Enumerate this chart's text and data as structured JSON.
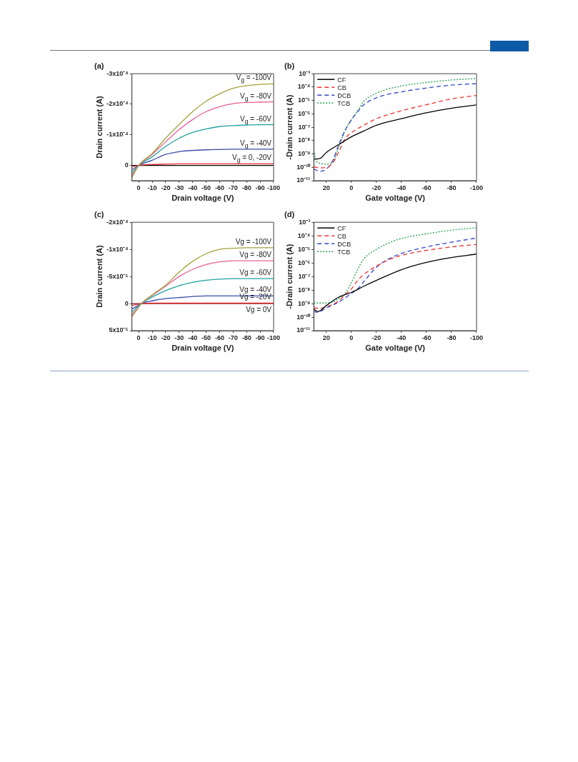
{
  "chart_data": [
    {
      "type": "line",
      "title": "(a)",
      "xlabel": "Drain voltage (V)",
      "ylabel": "Drain current (A)",
      "marker": "none",
      "xlim": [
        5,
        -100
      ],
      "xticks": [
        0,
        -10,
        -20,
        -30,
        -40,
        -50,
        -60,
        -70,
        -80,
        -90,
        -100
      ],
      "ylim": [
        5e-05,
        -0.0003
      ],
      "yticks": [
        {
          "value": -0.0003,
          "label": "-3x10⁻⁴"
        },
        {
          "value": -0.0002,
          "label": "-2x10⁻⁴"
        },
        {
          "value": -0.0001,
          "label": "-1x10⁻⁴"
        },
        0
      ],
      "x": [
        5,
        0,
        -10,
        -20,
        -30,
        -40,
        -50,
        -60,
        -70,
        -80,
        -90,
        -100
      ],
      "series": [
        {
          "name": "V$_{g}$ = -100V",
          "color": "#a3a13e",
          "values": [
            4e-05,
            0,
            -3.9e-05,
            -8.9e-05,
            -0.000134,
            -0.000176,
            -0.00021,
            -0.000234,
            -0.000252,
            -0.000261,
            -0.000265,
            -0.000267
          ]
        },
        {
          "name": "V$_{g}$ = -80V",
          "color": "#e8609a",
          "values": [
            3.3e-05,
            0,
            -3.6e-05,
            -7.7e-05,
            -0.000117,
            -0.00015,
            -0.000176,
            -0.000192,
            -0.000202,
            -0.000206,
            -0.000207,
            -0.000208
          ]
        },
        {
          "name": "V$_{g}$ = -60V",
          "color": "#20a0a0",
          "values": [
            2.5e-05,
            0,
            -2.8e-05,
            -6.2e-05,
            -8.9e-05,
            -0.000108,
            -0.000119,
            -0.000127,
            -0.00013,
            -0.000132,
            -0.000133,
            -0.000133
          ]
        },
        {
          "name": "V$_{g}$ = -40V",
          "color": "#3a4aa8",
          "values": [
            1.5e-05,
            0,
            -1.7e-05,
            -3.6e-05,
            -4.5e-05,
            -4.9e-05,
            -5.1e-05,
            -5.2e-05,
            -5.3e-05,
            -5.3e-05,
            -5.3e-05,
            -5.3e-05
          ]
        },
        {
          "name": "V$_{g}$ = 0, -20V",
          "color": "#e83030",
          "values": [
            5e-06,
            0,
            -3e-06,
            -4e-06,
            -5e-06,
            -5e-06,
            -5e-06,
            -5e-06,
            -5e-06,
            -5e-06,
            -5e-06,
            -5e-06
          ]
        },
        {
          "color": "#000000",
          "values": [
            0,
            0,
            0,
            0,
            0,
            0,
            0,
            0,
            0,
            0,
            0,
            0
          ]
        }
      ]
    },
    {
      "type": "line",
      "title": "(b)",
      "xlabel": "Gate voltage (V)",
      "ylabel": "-Drain current (A)",
      "log": true,
      "legend": "top left",
      "xlim": [
        30,
        -100
      ],
      "xticks": [
        20,
        0,
        -20,
        -40,
        -60,
        -80,
        -100
      ],
      "ylim": [
        1e-11,
        0.001
      ],
      "yticks": [
        {
          "value": 1e-11,
          "label": "10⁻¹¹"
        },
        {
          "value": 1e-10,
          "label": "10⁻¹⁰"
        },
        {
          "value": 1e-09,
          "label": "10⁻⁹"
        },
        {
          "value": 1e-08,
          "label": "10⁻⁸"
        },
        {
          "value": 1e-07,
          "label": "10⁻⁷"
        },
        {
          "value": 1e-06,
          "label": "10⁻⁶"
        },
        {
          "value": 1e-05,
          "label": "10⁻⁵"
        },
        {
          "value": 0.0001,
          "label": "10⁻⁴"
        },
        {
          "value": 0.001,
          "label": "10⁻³"
        }
      ],
      "series": [
        {
          "name": "CF",
          "color": "#000000",
          "line_style": "solid",
          "x": [
            30,
            25,
            20,
            10,
            0,
            -10,
            -20,
            -40,
            -60,
            -80,
            -100
          ],
          "values": [
            4.1e-10,
            4.6e-10,
            1.3e-09,
            5.1e-09,
            1.9e-08,
            5.2e-08,
            1.4e-07,
            4.3e-07,
            1.2e-06,
            2.6e-06,
            4.6e-06
          ]
        },
        {
          "name": "CB",
          "color": "#ee3333",
          "line_style": "dashed",
          "x": [
            30,
            25,
            20,
            15,
            10,
            5,
            0,
            -10,
            -20,
            -40,
            -60,
            -80,
            -100
          ],
          "values": [
            1.1e-10,
            9.1e-11,
            1e-10,
            2e-10,
            1.5e-09,
            1.4e-08,
            3.8e-08,
            1.4e-07,
            4.3e-07,
            1.7e-06,
            4.8e-06,
            1.3e-05,
            2.4e-05
          ]
        },
        {
          "name": "DCB",
          "color": "#3344cc",
          "line_style": "dashed",
          "x": [
            30,
            25,
            20,
            15,
            10,
            5,
            0,
            -5,
            -10,
            -20,
            -40,
            -60,
            -80,
            -100
          ],
          "values": [
            7.4e-11,
            5e-11,
            7.4e-11,
            3e-10,
            5.1e-09,
            5.8e-08,
            3.5e-07,
            1.4e-06,
            4.8e-06,
            1.6e-05,
            4.4e-05,
            8.5e-05,
            0.00014,
            0.00018
          ]
        },
        {
          "name": "TCB",
          "color": "#22a050",
          "line_style": "dotted",
          "x": [
            30,
            28,
            25,
            20,
            15,
            10,
            5,
            0,
            -5,
            -10,
            -20,
            -40,
            -60,
            -80,
            -100
          ],
          "values": [
            1.9e-09,
            3e-10,
            2e-10,
            1.7e-10,
            2.5e-10,
            3.4e-09,
            5.8e-08,
            3.5e-07,
            1.7e-06,
            8.7e-06,
            3.5e-05,
            0.00012,
            0.00022,
            0.00034,
            0.00043
          ]
        }
      ]
    },
    {
      "type": "line",
      "title": "(c)",
      "xlabel": "Drain voltage (V)",
      "ylabel": "Drain current (A)",
      "marker": "none",
      "xlim": [
        5,
        -100
      ],
      "xticks": [
        0,
        -10,
        -20,
        -30,
        -40,
        -50,
        -60,
        -70,
        -80,
        -90,
        -100
      ],
      "ylim": [
        5e-05,
        -0.00015
      ],
      "yticks": [
        {
          "value": -0.00015,
          "label": "-2x10⁻⁴"
        },
        {
          "value": -0.0001,
          "label": "-1x10⁻⁴"
        },
        {
          "value": -5e-05,
          "label": "-5x10⁻⁵"
        },
        0,
        {
          "value": 5e-05,
          "label": "5x10⁻⁵"
        }
      ],
      "x": [
        5,
        0,
        -2,
        -10,
        -20,
        -30,
        -40,
        -50,
        -60,
        -70,
        -80,
        -90,
        -100
      ],
      "series": [
        {
          "name": "Vg = -100V",
          "color": "#a3a13e",
          "values": [
            2.4e-05,
            7e-06,
            0,
            -1.6e-05,
            -3.4e-05,
            -5.8e-05,
            -7.8e-05,
            -9.2e-05,
            -0.0001,
            -0.000102,
            -0.000103,
            -0.000103,
            -0.000103
          ]
        },
        {
          "name": "Vg = -80V",
          "color": "#e8609a",
          "values": [
            2.1e-05,
            6e-06,
            0,
            -1.5e-05,
            -3.2e-05,
            -5e-05,
            -6.3e-05,
            -7.2e-05,
            -7.7e-05,
            -7.9e-05,
            -7.9e-05,
            -7.9e-05,
            -7.9e-05
          ]
        },
        {
          "name": "Vg = -60V",
          "color": "#20a0a0",
          "values": [
            1.6e-05,
            4e-06,
            0,
            -1.2e-05,
            -2.4e-05,
            -3.3e-05,
            -3.9e-05,
            -4.3e-05,
            -4.5e-05,
            -4.6e-05,
            -4.6e-05,
            -4.6e-05,
            -4.6e-05
          ]
        },
        {
          "name": "Vg = -40V",
          "color": "#3a4aa8",
          "values": [
            1e-05,
            3e-06,
            0,
            -5e-06,
            -9e-06,
            -1.1e-05,
            -1.3e-05,
            -1.4e-05,
            -1.4e-05,
            -1.4e-05,
            -1.4e-05,
            -1.4e-05,
            -1.4e-05
          ]
        },
        {
          "name": "Vg = -20V",
          "color": "#e83030",
          "values": [
            3.5e-06,
            1e-06,
            0,
            -1e-06,
            -1e-06,
            -1e-06,
            -1e-06,
            -1e-06,
            -1e-06,
            -1e-06,
            -1e-06,
            -1e-06,
            -1e-06
          ]
        },
        {
          "name": "Vg = 0V",
          "color": "#8b1a1a",
          "values": [
            0,
            0,
            0,
            0,
            0,
            0,
            0,
            0,
            0,
            0,
            0,
            0,
            0
          ]
        }
      ]
    },
    {
      "type": "line",
      "title": "(d)",
      "xlabel": "Gate voltage (V)",
      "ylabel": "-Drain current (A)",
      "log": true,
      "legend": "top left",
      "xlim": [
        30,
        -100
      ],
      "xticks": [
        20,
        0,
        -20,
        -40,
        -60,
        -80,
        -100
      ],
      "ylim": [
        1e-11,
        0.001
      ],
      "yticks": [
        {
          "value": 1e-11,
          "label": "10⁻¹¹"
        },
        {
          "value": 1e-10,
          "label": "10⁻¹⁰"
        },
        {
          "value": 1e-09,
          "label": "10⁻⁹"
        },
        {
          "value": 1e-08,
          "label": "10⁻⁸"
        },
        {
          "value": 1e-07,
          "label": "10⁻⁷"
        },
        {
          "value": 1e-06,
          "label": "10⁻⁶"
        },
        {
          "value": 1e-05,
          "label": "10⁻⁵"
        },
        {
          "value": 0.0001,
          "label": "10⁻⁴"
        },
        {
          "value": 0.001,
          "label": "10⁻³"
        }
      ],
      "series": [
        {
          "name": "CF",
          "color": "#000000",
          "line_style": "solid",
          "x": [
            30,
            27,
            25,
            20,
            10,
            0,
            -10,
            -20,
            -40,
            -60,
            -80,
            -100
          ],
          "values": [
            3.9e-10,
            2.6e-10,
            2.9e-10,
            7.1e-10,
            3e-09,
            6.6e-09,
            1.9e-08,
            5.1e-08,
            3.2e-07,
            1.1e-06,
            2.5e-06,
            4.5e-06
          ]
        },
        {
          "name": "CB",
          "color": "#ee3333",
          "line_style": "dashed",
          "x": [
            30,
            25,
            20,
            15,
            10,
            5,
            0,
            -5,
            -10,
            -20,
            -30,
            -40,
            -60,
            -80,
            -100
          ],
          "values": [
            4.7e-10,
            4.4e-10,
            5.8e-10,
            8.7e-10,
            1.6e-09,
            4.4e-09,
            1.2e-08,
            5.1e-08,
            1.4e-07,
            5.8e-07,
            1.7e-06,
            3.6e-06,
            8.3e-06,
            1.5e-05,
            2.3e-05
          ]
        },
        {
          "name": "DCB",
          "color": "#3344cc",
          "line_style": "dashed",
          "x": [
            30,
            27,
            20,
            10,
            0,
            -5,
            -10,
            -20,
            -30,
            -40,
            -60,
            -80,
            -100
          ],
          "values": [
            2.6e-10,
            2.3e-10,
            4.7e-10,
            1.3e-09,
            5.5e-09,
            1.2e-08,
            4.2e-08,
            4.8e-07,
            2e-06,
            5e-06,
            1.5e-05,
            3.4e-05,
            6.8e-05
          ]
        },
        {
          "name": "TCB",
          "color": "#22a050",
          "line_style": "dotted",
          "x": [
            30,
            20,
            15,
            10,
            5,
            0,
            -5,
            -10,
            -20,
            -30,
            -40,
            -60,
            -80,
            -100
          ],
          "values": [
            1.1e-09,
            1.1e-09,
            1.3e-09,
            2.4e-09,
            5.5e-09,
            3.4e-08,
            3.2e-07,
            2e-06,
            1e-05,
            3e-05,
            6.3e-05,
            0.00014,
            0.00026,
            0.00039
          ]
        }
      ]
    }
  ]
}
